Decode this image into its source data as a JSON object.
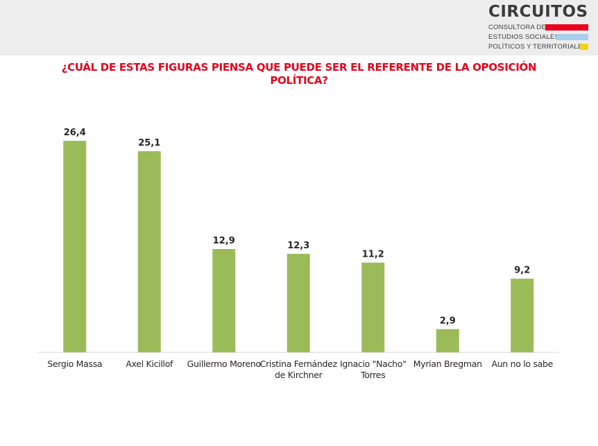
{
  "header": {
    "logo_name": "CIRCUITOS",
    "logo_lines": [
      "CONSULTORA DE",
      "ESTUDIOS SOCIALES,",
      "POLÍTICOS Y TERRITORIALES"
    ],
    "logo_colors": [
      "#e8001c",
      "#a9cdee",
      "#f2d21b"
    ]
  },
  "chart_data": {
    "type": "bar",
    "title": "¿CUÁL DE ESTAS FIGURAS PIENSA QUE PUEDE SER EL REFERENTE DE LA OPOSICIÓN POLÍTICA?",
    "categories": [
      "Sergio Massa",
      "Axel Kicillof",
      "Guillermo Moreno",
      "Cristina Fernández de Kirchner",
      "Ignacio \"Nacho\" Torres",
      "Myrian Bregman",
      "Aun no lo sabe"
    ],
    "values": [
      26.4,
      25.1,
      12.9,
      12.3,
      11.2,
      2.9,
      9.2
    ],
    "value_labels": [
      "26,4",
      "25,1",
      "12,9",
      "12,3",
      "11,2",
      "2,9",
      "9,2"
    ],
    "bar_color": "#9bbb59",
    "ylim": [
      0,
      26.4
    ],
    "grid": false,
    "legend": "none"
  }
}
